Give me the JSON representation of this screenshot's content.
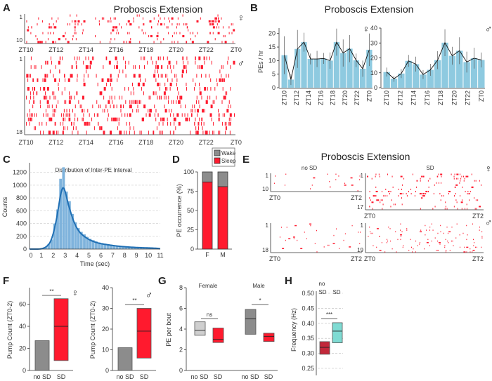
{
  "panels": {
    "A": "A",
    "B": "B",
    "C": "C",
    "D": "D",
    "E": "E",
    "F": "F",
    "G": "G",
    "H": "H"
  },
  "symbols": {
    "female": "♀",
    "male": "♂"
  },
  "colors": {
    "raster": "#ff1a2e",
    "bar_b": "#8ecae0",
    "hist": "#7fb3dc",
    "kde": "#1f6fb4",
    "wake": "#8c8c8c",
    "sleep": "#ff1a2e",
    "sd": "#ff1a2e",
    "nosd": "#8c8c8c",
    "g_nosd_f": "#cfcfcf",
    "h_nosd": "#c2283a",
    "h_sd": "#7fdbd3"
  },
  "chart_data": [
    {
      "id": "A",
      "type": "raster",
      "title": "Proboscis Extension",
      "x_ticks": [
        "ZT10",
        "ZT12",
        "ZT14",
        "ZT16",
        "ZT18",
        "ZT20",
        "ZT22",
        "ZT0"
      ],
      "groups": [
        {
          "sex": "female",
          "rows": 10,
          "row_labels": [
            "1",
            "10"
          ]
        },
        {
          "sex": "male",
          "rows": 18,
          "row_labels": [
            "1",
            "18"
          ]
        }
      ]
    },
    {
      "id": "B",
      "type": "bar",
      "title": "Proboscis Extension",
      "ylabel": "PEs / hr",
      "x_ticks": [
        "ZT10",
        "ZT12",
        "ZT14",
        "ZT16",
        "ZT18",
        "ZT20",
        "ZT22",
        "ZT0"
      ],
      "series": [
        {
          "name": "female",
          "ylim": [
            0,
            22
          ],
          "y_ticks": [
            "0",
            "5",
            "10",
            "15",
            "20"
          ],
          "y_tick_values": [
            0,
            5,
            10,
            15,
            20
          ],
          "values": [
            12,
            3,
            14.3,
            16.8,
            10.6,
            10.6,
            10.8,
            10,
            16.8,
            12.8,
            14.4,
            10.1,
            7,
            14
          ],
          "errors": [
            7,
            2,
            7,
            3.5,
            2,
            3,
            2,
            3,
            5,
            5,
            5,
            2.5,
            3,
            6
          ]
        },
        {
          "name": "male",
          "ylim": [
            0,
            40
          ],
          "y_ticks": [
            "0",
            "10",
            "20",
            "30",
            "40"
          ],
          "y_tick_values": [
            0,
            10,
            20,
            30,
            40
          ],
          "values": [
            10.5,
            6,
            9.5,
            18,
            15.8,
            8.8,
            12,
            18.5,
            30.2,
            21.4,
            24.8,
            17.2,
            19.8,
            18.6
          ],
          "errors": [
            3,
            2,
            3,
            4,
            5,
            3,
            4,
            6,
            9,
            6,
            9,
            7,
            7,
            5
          ]
        }
      ]
    },
    {
      "id": "C",
      "type": "bar",
      "title": "Distribution of Inter-PE Interval",
      "xlabel": "Time (sec)",
      "ylabel": "Counts",
      "xlim": [
        0,
        11
      ],
      "ylim": [
        0,
        1350
      ],
      "x_ticks": [
        "0",
        "1",
        "2",
        "3",
        "4",
        "5",
        "6",
        "7",
        "8",
        "9",
        "10",
        "11"
      ],
      "y_ticks": [
        "0",
        "200",
        "400",
        "600",
        "800",
        "1000",
        "1200"
      ],
      "bin_width": 0.25,
      "bin_start": 1.0,
      "values": [
        10,
        30,
        80,
        150,
        400,
        620,
        1100,
        1280,
        900,
        750,
        550,
        420,
        330,
        270,
        230,
        190,
        160,
        140,
        120,
        105,
        95,
        85,
        78,
        70,
        62,
        56,
        50,
        46,
        42,
        38,
        34,
        31,
        28,
        26,
        24,
        22,
        20,
        18,
        16,
        14
      ]
    },
    {
      "id": "D",
      "type": "bar",
      "stacked": true,
      "ylabel": "PE occurrence (%)",
      "categories": [
        "F",
        "M"
      ],
      "y_ticks": [
        "0",
        "25",
        "50",
        "75",
        "100"
      ],
      "legend": [
        "Wake",
        "Sleep"
      ],
      "legend_position": "top",
      "series": [
        {
          "name": "Sleep",
          "values": [
            87,
            81
          ]
        },
        {
          "name": "Wake",
          "values": [
            13,
            19
          ]
        }
      ]
    },
    {
      "id": "E",
      "type": "raster",
      "title": "Proboscis Extension",
      "columns": [
        "no SD",
        "SD"
      ],
      "x_ticks": [
        "ZT0",
        "ZT2"
      ],
      "groups": [
        {
          "sex": "female",
          "cond": "no SD",
          "rows": 10,
          "row_labels": [
            "1",
            "10"
          ]
        },
        {
          "sex": "female",
          "cond": "SD",
          "rows": 17,
          "row_labels": [
            "1",
            "17"
          ]
        },
        {
          "sex": "male",
          "cond": "no SD",
          "rows": 18,
          "row_labels": [
            "1",
            "18"
          ]
        },
        {
          "sex": "male",
          "cond": "SD",
          "rows": 19,
          "row_labels": [
            "1",
            "19"
          ]
        }
      ]
    },
    {
      "id": "F",
      "type": "box",
      "ylabel": "Pump Count (ZT0-2)",
      "categories": [
        "no SD",
        "SD"
      ],
      "plots": [
        {
          "sex": "female",
          "ylim": [
            0,
            75
          ],
          "y_ticks": [
            "0",
            "20",
            "40",
            "60"
          ],
          "significance": "**",
          "boxes": [
            {
              "low": 0,
              "high": 27,
              "median": null
            },
            {
              "low": 9,
              "high": 65,
              "median": 40
            }
          ]
        },
        {
          "sex": "male",
          "ylim": [
            0,
            40
          ],
          "y_ticks": [
            "0",
            "10",
            "20",
            "30",
            "40"
          ],
          "significance": "**",
          "boxes": [
            {
              "low": 0,
              "high": 11,
              "median": null
            },
            {
              "low": 6,
              "high": 30,
              "median": 19
            }
          ]
        }
      ]
    },
    {
      "id": "G",
      "type": "box",
      "ylabel": "PE per bout",
      "ylim": [
        0,
        8
      ],
      "y_ticks": [
        "0",
        "2",
        "4",
        "6",
        "8"
      ],
      "groups": [
        {
          "name": "Female",
          "categories": [
            "no SD",
            "SD"
          ],
          "significance": "ns",
          "boxes": [
            {
              "low": 3.4,
              "high": 4.7,
              "median": 3.9
            },
            {
              "low": 2.7,
              "high": 4.1,
              "median": 3.0
            }
          ]
        },
        {
          "name": "Male",
          "categories": [
            "no SD",
            "SD"
          ],
          "significance": "*",
          "boxes": [
            {
              "low": 3.5,
              "high": 5.9,
              "median": 5.0
            },
            {
              "low": 2.8,
              "high": 3.6,
              "median": 3.3
            }
          ]
        }
      ]
    },
    {
      "id": "H",
      "type": "box",
      "ylabel": "Frequency (Hz)",
      "ylim": [
        0.23,
        0.5
      ],
      "y_ticks": [
        "0.25",
        "0.30",
        "0.35",
        "0.40",
        "0.45",
        "0.50"
      ],
      "header": [
        "no",
        "SD",
        "SD"
      ],
      "significance": "***",
      "boxes": [
        {
          "low": 0.297,
          "high": 0.339,
          "median": 0.32
        },
        {
          "low": 0.335,
          "high": 0.402,
          "median": 0.374
        }
      ]
    }
  ]
}
